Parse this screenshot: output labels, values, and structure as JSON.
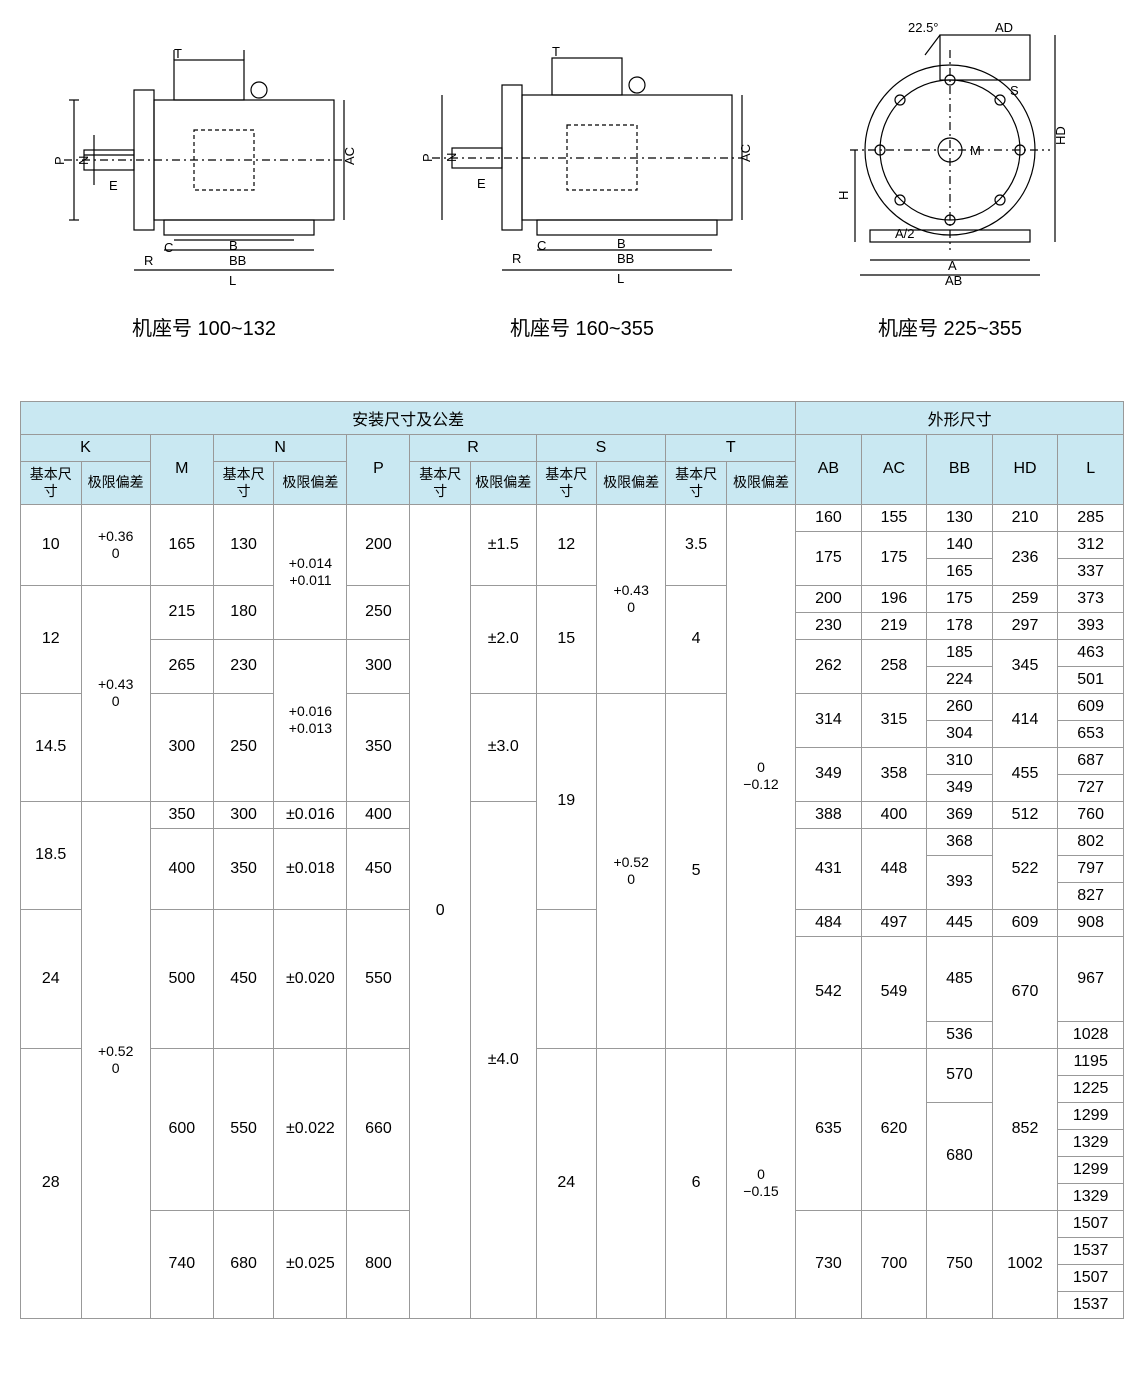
{
  "diagrams": {
    "labels": [
      "机座号 100~132",
      "机座号 160~355",
      "机座号 225~355"
    ],
    "dim_letters": [
      "T",
      "P",
      "N",
      "E",
      "R",
      "C",
      "B",
      "BB",
      "L",
      "AC",
      "A",
      "AB",
      "AD",
      "HD",
      "H",
      "A/2",
      "M",
      "S",
      "22.5°"
    ]
  },
  "table": {
    "hdr_install": "安装尺寸及公差",
    "hdr_outline": "外形尺寸",
    "sub_basic": "基本尺寸",
    "sub_tol": "极限偏差",
    "cols": {
      "K": "K",
      "N": "N",
      "R": "R",
      "S": "S",
      "T": "T",
      "M": "M",
      "P": "P",
      "AB": "AB",
      "AC": "AC",
      "BB": "BB",
      "HD": "HD",
      "L": "L"
    },
    "rows": [
      {
        "K": "10",
        "Kt": "+0.36\n0",
        "M": "165",
        "Nb": "130",
        "Nt": "+0.014\n+0.011",
        "P": "200",
        "Rb": "0",
        "Rt": "±1.5",
        "Sb": "12",
        "St": "+0.43\n0",
        "Tb": "3.5",
        "Tt": "0\n−0.12",
        "AB": "160",
        "AC": "155",
        "BB": "130",
        "HD": "210",
        "L": "285"
      },
      {
        "AB": "175",
        "AC": "175",
        "BB": "140",
        "HD": "236",
        "L": "312"
      },
      {
        "BB": "165",
        "L": "337"
      },
      {
        "K": "12",
        "Kt": "+0.43\n0",
        "M": "215",
        "Nb": "180",
        "P": "250",
        "Rt": "±2.0",
        "Sb": "15",
        "Tb": "4",
        "AB": "200",
        "AC": "196",
        "BB": "175",
        "HD": "259",
        "L": "373"
      },
      {
        "AB": "230",
        "AC": "219",
        "BB": "178",
        "HD": "297",
        "L": "393"
      },
      {
        "M": "265",
        "Nb": "230",
        "Nt": "+0.016\n+0.013",
        "P": "300",
        "AB": "262",
        "AC": "258",
        "BB": "185",
        "HD": "345",
        "L": "463"
      },
      {
        "BB": "224",
        "L": "501"
      },
      {
        "K": "14.5",
        "M": "300",
        "Nb": "250",
        "P": "350",
        "Rt": "±3.0",
        "Sb": "19",
        "St": "+0.52\n0",
        "Tb": "5",
        "AB": "314",
        "AC": "315",
        "BB": "260",
        "HD": "414",
        "L": "609"
      },
      {
        "BB": "304",
        "L": "653"
      },
      {
        "AB": "349",
        "AC": "358",
        "BB": "310",
        "HD": "455",
        "L": "687"
      },
      {
        "BB": "349",
        "L": "727"
      },
      {
        "K": "18.5",
        "M": "350",
        "Nb": "300",
        "Nt": "±0.016",
        "P": "400",
        "Rt": "±4.0",
        "AB": "388",
        "AC": "400",
        "BB": "369",
        "HD": "512",
        "L": "760"
      },
      {
        "M": "400",
        "Nb": "350",
        "Nt": "±0.018",
        "P": "450",
        "AB": "431",
        "AC": "448",
        "BB": "368",
        "HD": "522",
        "L": "802"
      },
      {
        "BB": "393",
        "L": "797"
      },
      {
        "L": "827"
      },
      {
        "K": "24",
        "Kt": "+0.52\n0",
        "M": "500",
        "Nb": "450",
        "Nt": "±0.020",
        "P": "550",
        "AB": "484",
        "AC": "497",
        "BB": "445",
        "HD": "609",
        "L": "908"
      },
      {
        "AB": "542",
        "AC": "549",
        "BB": "485",
        "HD": "670",
        "L": "967"
      },
      {
        "BB": "536",
        "L": "1028"
      },
      {
        "K": "28",
        "M": "600",
        "Nb": "550",
        "Nt": "±0.022",
        "P": "660",
        "Sb": "24",
        "Tb": "6",
        "Tt": "0\n−0.15",
        "AB": "635",
        "AC": "620",
        "BB": "570",
        "HD": "852",
        "L": "1195"
      },
      {
        "L": "1225"
      },
      {
        "BB": "680",
        "L": "1299"
      },
      {
        "L": "1329"
      },
      {
        "L": "1299"
      },
      {
        "L": "1329"
      },
      {
        "M": "740",
        "Nb": "680",
        "Nt": "±0.025",
        "P": "800",
        "AB": "730",
        "AC": "700",
        "BB": "750",
        "HD": "1002",
        "L": "1507"
      },
      {
        "L": "1537"
      },
      {
        "L": "1507"
      },
      {
        "L": "1537"
      }
    ]
  },
  "style": {
    "page_bg": "#ffffff",
    "header_bg": "#c9e8f2",
    "border_color": "#999999",
    "text_color": "#000000",
    "diagram_stroke": "#000000",
    "font_main": 16,
    "font_label": 20
  }
}
